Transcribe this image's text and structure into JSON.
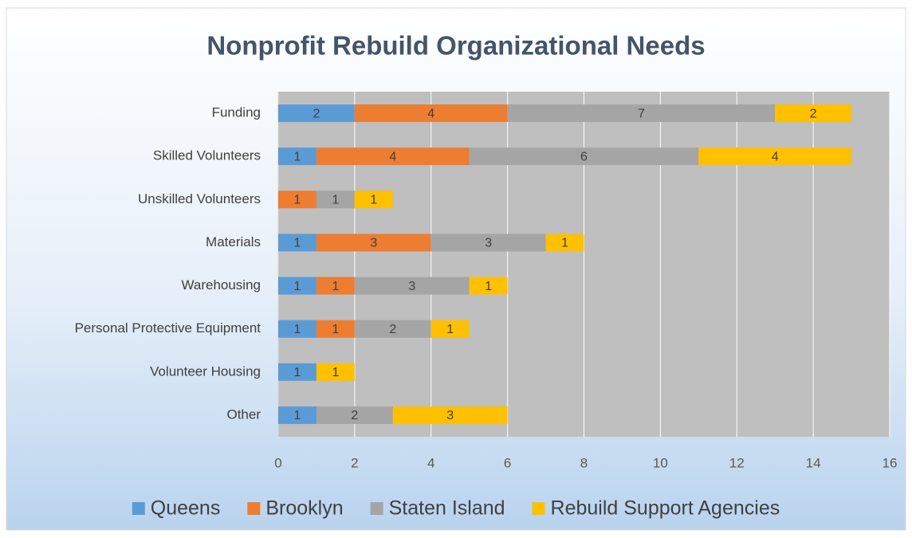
{
  "chart_data": {
    "type": "bar",
    "orientation": "horizontal",
    "stacked": true,
    "title": "Nonprofit Rebuild Organizational Needs",
    "categories": [
      "Funding",
      "Skilled Volunteers",
      "Unskilled Volunteers",
      "Materials",
      "Warehousing",
      "Personal Protective Equipment",
      "Volunteer Housing",
      "Other"
    ],
    "series": [
      {
        "name": "Queens",
        "color": "#5b9bd5",
        "values": [
          2,
          1,
          null,
          1,
          1,
          1,
          1,
          1
        ]
      },
      {
        "name": "Brooklyn",
        "color": "#ed7d31",
        "values": [
          4,
          4,
          1,
          3,
          1,
          1,
          null,
          null
        ]
      },
      {
        "name": "Staten Island",
        "color": "#a5a5a5",
        "values": [
          7,
          6,
          1,
          3,
          3,
          2,
          null,
          2
        ]
      },
      {
        "name": "Rebuild Support Agencies",
        "color": "#ffc000",
        "values": [
          2,
          4,
          1,
          1,
          1,
          1,
          1,
          3
        ]
      }
    ],
    "xlim": [
      0,
      16
    ],
    "xticks": [
      0,
      2,
      4,
      6,
      8,
      10,
      12,
      14,
      16
    ],
    "grid": true,
    "legend": "bottom"
  }
}
